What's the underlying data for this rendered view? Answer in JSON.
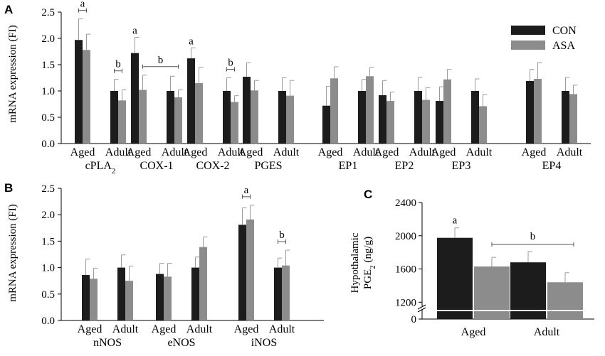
{
  "colors": {
    "con": "#1c1c1c",
    "asa": "#8c8c8c",
    "axis": "#000000"
  },
  "legend": [
    {
      "key": "con",
      "label": "CON"
    },
    {
      "key": "asa",
      "label": "ASA"
    }
  ],
  "chart_data": [
    {
      "panel": "A",
      "type": "bar",
      "ylabel": "mRNA expression (FI)",
      "ylim": [
        0,
        2.5
      ],
      "yticks": [
        "0.0",
        "0.5",
        "1.0",
        "1.5",
        "2.0",
        "2.5"
      ],
      "groups": [
        {
          "name": "cPLA",
          "subscript": "2",
          "categories": [
            "Aged",
            "Adult"
          ],
          "con": [
            1.97,
            1.0
          ],
          "con_err": [
            0.4,
            0.22
          ],
          "asa": [
            1.78,
            0.82
          ],
          "asa_err": [
            0.3,
            0.2
          ]
        },
        {
          "name": "COX-1",
          "subscript": "",
          "categories": [
            "Aged",
            "Adult"
          ],
          "con": [
            1.72,
            1.0
          ],
          "con_err": [
            0.3,
            0.28
          ],
          "asa": [
            1.02,
            0.88
          ],
          "asa_err": [
            0.28,
            0.14
          ]
        },
        {
          "name": "COX-2",
          "subscript": "",
          "categories": [
            "Aged",
            "Adult"
          ],
          "con": [
            1.62,
            1.0
          ],
          "con_err": [
            0.2,
            0.25
          ],
          "asa": [
            1.15,
            0.79
          ],
          "asa_err": [
            0.3,
            0.12
          ]
        },
        {
          "name": "PGES",
          "subscript": "",
          "categories": [
            "Aged",
            "Adult"
          ],
          "con": [
            1.27,
            1.0
          ],
          "con_err": [
            0.27,
            0.25
          ],
          "asa": [
            1.01,
            0.91
          ],
          "asa_err": [
            0.19,
            0.29
          ]
        },
        {
          "name": "EP1",
          "subscript": "",
          "categories": [
            "Aged",
            "Adult"
          ],
          "con": [
            0.72,
            1.0
          ],
          "con_err": [
            0.37,
            0.22
          ],
          "asa": [
            1.24,
            1.28
          ],
          "asa_err": [
            0.22,
            0.17
          ]
        },
        {
          "name": "EP2",
          "subscript": "",
          "categories": [
            "Aged",
            "Adult"
          ],
          "con": [
            0.92,
            1.0
          ],
          "con_err": [
            0.28,
            0.26
          ],
          "asa": [
            0.81,
            0.83
          ],
          "asa_err": [
            0.17,
            0.23
          ]
        },
        {
          "name": "EP3",
          "subscript": "",
          "categories": [
            "Aged",
            "Adult"
          ],
          "con": [
            0.81,
            1.0
          ],
          "con_err": [
            0.27,
            0.23
          ],
          "asa": [
            1.22,
            0.71
          ],
          "asa_err": [
            0.19,
            0.22
          ]
        },
        {
          "name": "EP4",
          "subscript": "",
          "categories": [
            "Aged",
            "Adult"
          ],
          "con": [
            1.19,
            1.0
          ],
          "con_err": [
            0.22,
            0.26
          ],
          "asa": [
            1.23,
            0.94
          ],
          "asa_err": [
            0.31,
            0.17
          ]
        }
      ],
      "annotations": [
        {
          "text": "a",
          "group": 0,
          "bracket": "aged-pair"
        },
        {
          "text": "b",
          "group": 0,
          "bracket": "adult-pair"
        },
        {
          "text": "a",
          "group": 1,
          "bracket": "aged-con"
        },
        {
          "text": "b",
          "group": 1,
          "bracket": "span"
        },
        {
          "text": "a",
          "group": 2,
          "bracket": "aged-con"
        },
        {
          "text": "b",
          "group": 2,
          "bracket": "adult-pair"
        }
      ]
    },
    {
      "panel": "B",
      "type": "bar",
      "ylabel": "mRNA expression (FI)",
      "ylim": [
        0,
        2.5
      ],
      "yticks": [
        "0.0",
        "0.5",
        "1.0",
        "1.5",
        "2.0",
        "2.5"
      ],
      "groups": [
        {
          "name": "nNOS",
          "subscript": "",
          "categories": [
            "Aged",
            "Adult"
          ],
          "con": [
            0.86,
            1.0
          ],
          "con_err": [
            0.3,
            0.24
          ],
          "asa": [
            0.79,
            0.75
          ],
          "asa_err": [
            0.2,
            0.28
          ]
        },
        {
          "name": "eNOS",
          "subscript": "",
          "categories": [
            "Aged",
            "Adult"
          ],
          "con": [
            0.88,
            1.0
          ],
          "con_err": [
            0.2,
            0.2
          ],
          "asa": [
            0.83,
            1.39
          ],
          "asa_err": [
            0.25,
            0.19
          ]
        },
        {
          "name": "iNOS",
          "subscript": "",
          "categories": [
            "Aged",
            "Adult"
          ],
          "con": [
            1.81,
            1.0
          ],
          "con_err": [
            0.32,
            0.18
          ],
          "asa": [
            1.91,
            1.04
          ],
          "asa_err": [
            0.27,
            0.29
          ]
        }
      ],
      "annotations": [
        {
          "text": "a",
          "group": 2,
          "bracket": "aged-pair"
        },
        {
          "text": "b",
          "group": 2,
          "bracket": "adult-pair"
        }
      ]
    },
    {
      "panel": "C",
      "type": "bar",
      "ylabel_line1": "Hypothalamic",
      "ylabel_line2": "PGE",
      "ylabel_sub": "2",
      "ylabel_unit": " (ng/g)",
      "ylim": [
        1000,
        2400
      ],
      "yticks": [
        "0",
        "1200",
        "1600",
        "2000",
        "2400"
      ],
      "axis_break": true,
      "categories": [
        "Aged",
        "Adult"
      ],
      "con": [
        1975,
        1680
      ],
      "con_err": [
        120,
        130
      ],
      "asa": [
        1630,
        1440
      ],
      "asa_err": [
        110,
        115
      ],
      "annotations": [
        {
          "text": "a",
          "target": "aged-con"
        },
        {
          "text": "b",
          "target": "span"
        }
      ]
    }
  ]
}
